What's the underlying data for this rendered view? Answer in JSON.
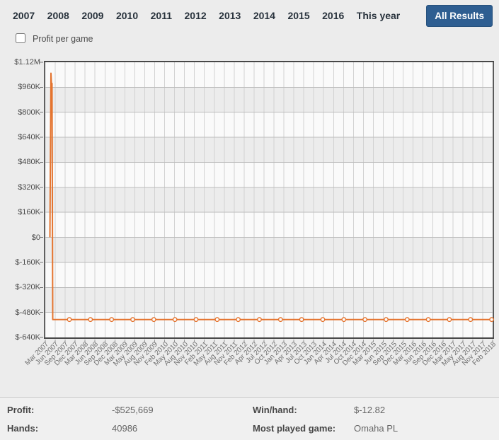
{
  "nav": {
    "years": [
      "2007",
      "2008",
      "2009",
      "2010",
      "2011",
      "2012",
      "2013",
      "2014",
      "2015",
      "2016",
      "This year"
    ],
    "all_results_label": "All Results",
    "active_button_color": "#2e5e91"
  },
  "controls": {
    "profit_per_game_label": "Profit per game",
    "profit_per_game_checked": false
  },
  "chart_data": {
    "type": "line",
    "title": "",
    "xlabel": "",
    "ylabel": "",
    "grid": true,
    "legend": "none",
    "ylim": [
      -640000,
      1120000
    ],
    "y_tick_values": [
      1120000,
      960000,
      800000,
      640000,
      480000,
      320000,
      160000,
      0,
      -160000,
      -320000,
      -480000,
      -640000
    ],
    "y_tick_labels": [
      "$1.12M",
      "$960K",
      "$800K",
      "$640K",
      "$480K",
      "$320K",
      "$160K",
      "$0",
      "$-160K",
      "$-320K",
      "$-480K",
      "$-640K"
    ],
    "x_tick_labels": [
      "Mar 2007",
      "Jun 2007",
      "Sep 2007",
      "Dec 2007",
      "Mar 2008",
      "Jun 2008",
      "Sep 2008",
      "Dec 2008",
      "Mar 2009",
      "May 2009",
      "Aug 2009",
      "Nov 2009",
      "Feb 2010",
      "May 2010",
      "Aug 2010",
      "Nov 2010",
      "Feb 2011",
      "May 2011",
      "Aug 2011",
      "Nov 2011",
      "Feb 2012",
      "Apr 2012",
      "Jul 2012",
      "Oct 2012",
      "Jan 2013",
      "Apr 2013",
      "Jul 2013",
      "Oct 2013",
      "Jan 2014",
      "Apr 2014",
      "Jul 2014",
      "Oct 2014",
      "Dec 2014",
      "Mar 2015",
      "Jun 2015",
      "Sep 2015",
      "Dec 2015",
      "Mar 2016",
      "Jun 2016",
      "Sep 2016",
      "Dec 2016",
      "Mar 2017",
      "May 2017",
      "Aug 2017",
      "Nov 2017",
      "Feb 2018"
    ],
    "band_colors": [
      "#fafafa",
      "#ececec"
    ],
    "grid_color_vertical": "#d2d2d2",
    "grid_color_horizontal": "#bcbcbc",
    "series": [
      {
        "name": "Profit",
        "color": "#e4742f",
        "marker": "open-circle",
        "key_points": [
          {
            "x_frac": 0.0103,
            "value": 0
          },
          {
            "x_frac": 0.0127,
            "value": 1050000
          },
          {
            "x_frac": 0.0139,
            "value": 970000
          },
          {
            "x_frac": 0.015,
            "value": 985000
          },
          {
            "x_frac": 0.0166,
            "value": -525669
          },
          {
            "x_frac": 1.0,
            "value": -525669
          }
        ],
        "flat_value": -525669,
        "markers": {
          "start_frac": 0.0538,
          "step_frac": 0.0472,
          "count": 21,
          "value": -525669
        }
      }
    ]
  },
  "stats": {
    "profit_label": "Profit:",
    "profit_value": "-$525,669",
    "hands_label": "Hands:",
    "hands_value": "40986",
    "win_hand_label": "Win/hand:",
    "win_hand_value": "$-12.82",
    "most_played_label": "Most played game:",
    "most_played_value": "Omaha PL"
  }
}
